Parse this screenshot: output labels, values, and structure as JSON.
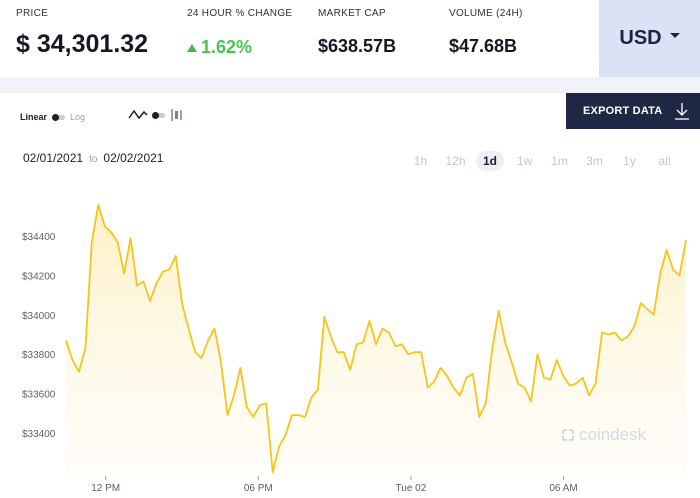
{
  "stats": {
    "price": {
      "label": "PRICE",
      "value": "34,301.32",
      "symbol": "$"
    },
    "change": {
      "label": "24 HOUR % CHANGE",
      "value": "1.62%",
      "direction": "up",
      "color": "#49c44d"
    },
    "market_cap": {
      "label": "MARKET CAP",
      "value": "$638.57B"
    },
    "volume": {
      "label": "VOLUME (24H)",
      "value": "$47.68B"
    }
  },
  "currency": {
    "selected": "USD"
  },
  "controls": {
    "scale_linear": "Linear",
    "scale_log": "Log",
    "export_label": "EXPORT DATA",
    "date_from": "02/01/2021",
    "date_to_word": "to",
    "date_to": "02/02/2021",
    "ranges": [
      "1h",
      "12h",
      "1d",
      "1w",
      "1m",
      "3m",
      "1y",
      "all"
    ],
    "active_range": "1d"
  },
  "watermark": "coindesk",
  "colors": {
    "line": "#f5c518",
    "fill_top": "#fdf0c2",
    "export_bg": "#1e2744",
    "currency_bg": "#dce2f5"
  },
  "chart_data": {
    "type": "area",
    "ylim": [
      33180,
      34620
    ],
    "yticks": [
      33400,
      33600,
      33800,
      34000,
      34200,
      34400
    ],
    "ytick_labels": [
      "$33400",
      "$33600",
      "$33800",
      "$34000",
      "$34200",
      "$34400"
    ],
    "xtick_labels": [
      "12 PM",
      "06 PM",
      "Tue 02",
      "06 AM"
    ],
    "xtick_positions": [
      0.151,
      0.369,
      0.587,
      0.805
    ],
    "values": [
      33870,
      33770,
      33710,
      33830,
      34370,
      34560,
      34450,
      34420,
      34370,
      34210,
      34390,
      34150,
      34170,
      34070,
      34160,
      34220,
      34230,
      34300,
      34050,
      33930,
      33810,
      33780,
      33870,
      33930,
      33760,
      33490,
      33590,
      33730,
      33530,
      33480,
      33540,
      33550,
      33200,
      33330,
      33390,
      33490,
      33490,
      33480,
      33580,
      33620,
      33990,
      33890,
      33810,
      33810,
      33720,
      33850,
      33860,
      33970,
      33850,
      33930,
      33910,
      33840,
      33850,
      33800,
      33810,
      33810,
      33630,
      33660,
      33730,
      33690,
      33630,
      33590,
      33680,
      33700,
      33480,
      33550,
      33830,
      34020,
      33860,
      33760,
      33650,
      33630,
      33560,
      33800,
      33680,
      33670,
      33770,
      33690,
      33640,
      33650,
      33680,
      33590,
      33650,
      33910,
      33900,
      33910,
      33870,
      33890,
      33940,
      34060,
      34030,
      34000,
      34210,
      34330,
      34230,
      34200,
      34380
    ]
  }
}
